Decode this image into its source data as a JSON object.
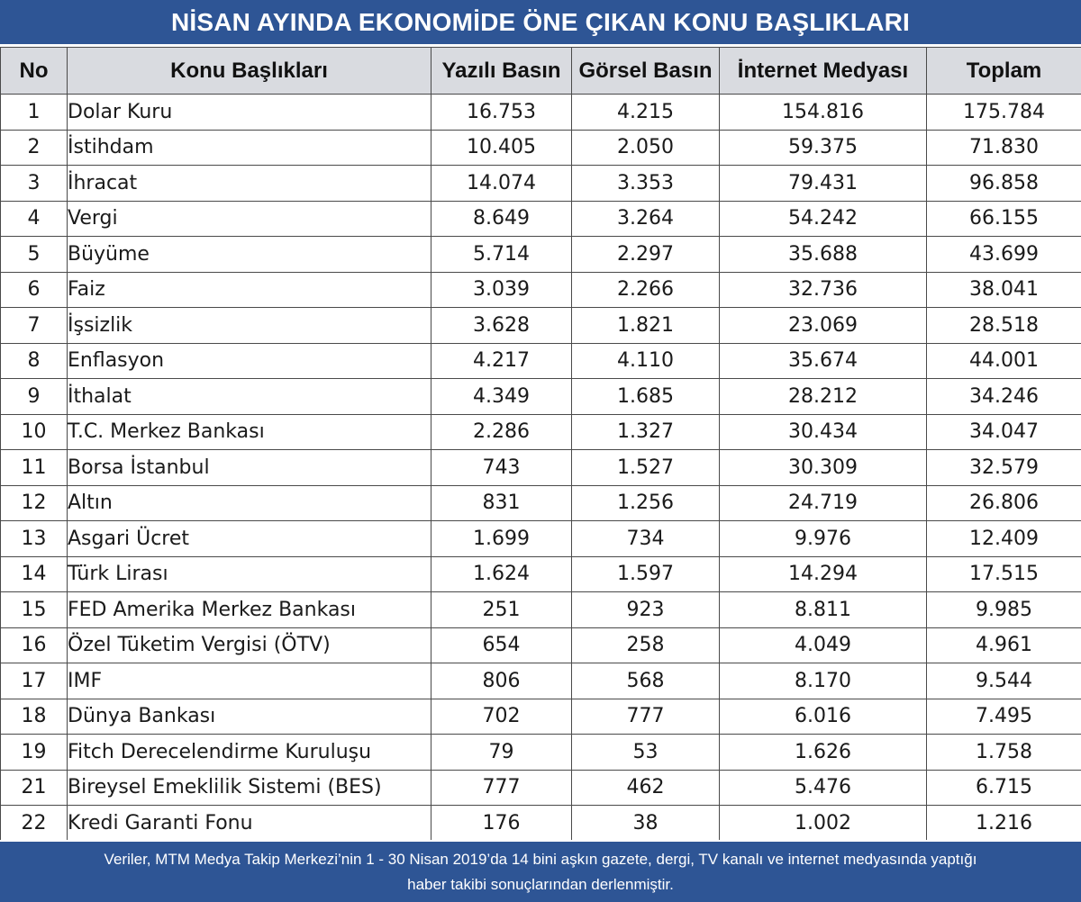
{
  "title": "NİSAN AYINDA EKONOMİDE ÖNE ÇIKAN KONU BAŞLIKLARI",
  "headers": {
    "no": "No",
    "topic": "Konu Başlıkları",
    "print": "Yazılı Basın",
    "visual": "Görsel Basın",
    "internet": "İnternet Medyası",
    "total": "Toplam"
  },
  "rows": [
    {
      "no": "1",
      "topic": "Dolar Kuru",
      "print": "16.753",
      "visual": "4.215",
      "internet": "154.816",
      "total": "175.784"
    },
    {
      "no": "2",
      "topic": "İstihdam",
      "print": "10.405",
      "visual": "2.050",
      "internet": "59.375",
      "total": "71.830"
    },
    {
      "no": "3",
      "topic": "İhracat",
      "print": "14.074",
      "visual": "3.353",
      "internet": "79.431",
      "total": "96.858"
    },
    {
      "no": "4",
      "topic": "Vergi",
      "print": "8.649",
      "visual": "3.264",
      "internet": "54.242",
      "total": "66.155"
    },
    {
      "no": "5",
      "topic": "Büyüme",
      "print": "5.714",
      "visual": "2.297",
      "internet": "35.688",
      "total": "43.699"
    },
    {
      "no": "6",
      "topic": "Faiz",
      "print": "3.039",
      "visual": "2.266",
      "internet": "32.736",
      "total": "38.041"
    },
    {
      "no": "7",
      "topic": "İşsizlik",
      "print": "3.628",
      "visual": "1.821",
      "internet": "23.069",
      "total": "28.518"
    },
    {
      "no": "8",
      "topic": "Enflasyon",
      "print": "4.217",
      "visual": "4.110",
      "internet": "35.674",
      "total": "44.001"
    },
    {
      "no": "9",
      "topic": "İthalat",
      "print": "4.349",
      "visual": "1.685",
      "internet": "28.212",
      "total": "34.246"
    },
    {
      "no": "10",
      "topic": "T.C. Merkez Bankası",
      "print": "2.286",
      "visual": "1.327",
      "internet": "30.434",
      "total": "34.047"
    },
    {
      "no": "11",
      "topic": "Borsa İstanbul",
      "print": "743",
      "visual": "1.527",
      "internet": "30.309",
      "total": "32.579"
    },
    {
      "no": "12",
      "topic": "Altın",
      "print": "831",
      "visual": "1.256",
      "internet": "24.719",
      "total": "26.806"
    },
    {
      "no": "13",
      "topic": "Asgari Ücret",
      "print": "1.699",
      "visual": "734",
      "internet": "9.976",
      "total": "12.409"
    },
    {
      "no": "14",
      "topic": "Türk Lirası",
      "print": "1.624",
      "visual": "1.597",
      "internet": "14.294",
      "total": "17.515"
    },
    {
      "no": "15",
      "topic": "FED Amerika Merkez Bankası",
      "print": "251",
      "visual": "923",
      "internet": "8.811",
      "total": "9.985"
    },
    {
      "no": "16",
      "topic": "Özel Tüketim Vergisi (ÖTV)",
      "print": "654",
      "visual": "258",
      "internet": "4.049",
      "total": "4.961"
    },
    {
      "no": "17",
      "topic": "IMF",
      "print": "806",
      "visual": "568",
      "internet": "8.170",
      "total": "9.544"
    },
    {
      "no": "18",
      "topic": "Dünya Bankası",
      "print": "702",
      "visual": "777",
      "internet": "6.016",
      "total": "7.495"
    },
    {
      "no": "19",
      "topic": "Fitch Derecelendirme Kuruluşu",
      "print": "79",
      "visual": "53",
      "internet": "1.626",
      "total": "1.758"
    },
    {
      "no": "21",
      "topic": "Bireysel Emeklilik Sistemi (BES)",
      "print": "777",
      "visual": "462",
      "internet": "5.476",
      "total": "6.715"
    },
    {
      "no": "22",
      "topic": "Kredi Garanti Fonu",
      "print": "176",
      "visual": "38",
      "internet": "1.002",
      "total": "1.216"
    }
  ],
  "footer": {
    "line1": "Veriler, MTM Medya Takip Merkezi’nin 1 - 30 Nisan 2019’da 14 bini aşkın gazete, dergi, TV kanalı ve internet medyasında yaptığı",
    "line2": "haber takibi sonuçlarından derlenmiştir."
  }
}
